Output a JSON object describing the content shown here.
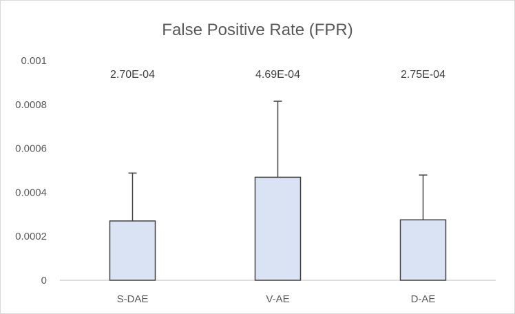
{
  "chart_data": {
    "type": "bar",
    "title": "False Positive Rate (FPR)",
    "xlabel": "",
    "ylabel": "",
    "categories": [
      "S-DAE",
      "V-AE",
      "D-AE"
    ],
    "values": [
      0.00027,
      0.000469,
      0.000275
    ],
    "error_plus": [
      0.000218,
      0.000346,
      0.000204
    ],
    "data_labels": [
      "2.70E-04",
      "4.69E-04",
      "2.75E-04"
    ],
    "ylim": [
      0,
      0.001
    ],
    "yticks": [
      0,
      0.0002,
      0.0004,
      0.0006,
      0.0008,
      0.001
    ],
    "ytick_labels": [
      "0",
      "0.0002",
      "0.0004",
      "0.0006",
      "0.0008",
      "0.001"
    ],
    "grid": false,
    "legend": "none",
    "colors": {
      "bar_fill": "#dae3f3",
      "bar_stroke": "#404040",
      "error_bar": "#404040",
      "axis": "#bfbfbf"
    }
  }
}
